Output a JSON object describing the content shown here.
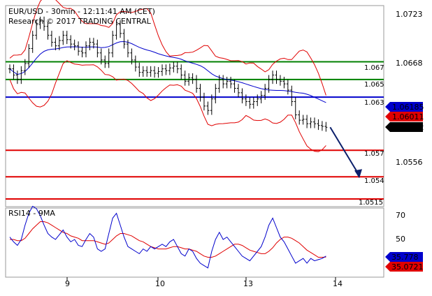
{
  "header": {
    "line1": "EUR/USD - 30min - 12:11:41 AM (CET)",
    "line2": "Research © 2017 TRADING CENTRAL"
  },
  "price_axis": [
    "1.0723",
    "1.0668",
    "1.0556"
  ],
  "date_axis": [
    "9",
    "10",
    "13",
    "14"
  ],
  "rsi_axis": [
    "70",
    "50"
  ],
  "rsi_title": "RSI14 - 9MA",
  "levels": [
    {
      "label": "1.067",
      "value": 1.067,
      "color": "#008000"
    },
    {
      "label": "1.065",
      "value": 1.065,
      "color": "#008000"
    },
    {
      "label": "1.063",
      "value": 1.063,
      "color": "#0000cc"
    },
    {
      "label": "1.057",
      "value": 1.057,
      "color": "#e00000"
    },
    {
      "label": "1.054",
      "value": 1.054,
      "color": "#e00000"
    },
    {
      "label": "1.0515",
      "value": 1.0515,
      "color": "#e00000"
    }
  ],
  "tags": {
    "ma": "1.06185",
    "ma2": "1.06011",
    "last": "1.05962",
    "rsi": "35.778",
    "rsi_ma": "35.0721"
  },
  "colors": {
    "price_bars": "#000000",
    "bollinger": "#e00000",
    "moving_average": "#0000cc",
    "support_resistance_pivot": "#0000cc",
    "resistance": "#008000",
    "support": "#e00000",
    "rsi": "#0000cc",
    "rsi_ma": "#e00000"
  },
  "chart_data": {
    "type": "line",
    "title": "EUR/USD - 30min - 12:11:41 AM (CET)",
    "x": [
      "9",
      "10",
      "13",
      "14"
    ],
    "ylim_price": [
      1.0485,
      1.0735
    ],
    "price_closes": [
      1.0662,
      1.0655,
      1.065,
      1.066,
      1.0668,
      1.0685,
      1.07,
      1.0712,
      1.0716,
      1.071,
      1.07,
      1.0692,
      1.0688,
      1.0694,
      1.07,
      1.0695,
      1.069,
      1.0688,
      1.0682,
      1.068,
      1.0688,
      1.0692,
      1.069,
      1.068,
      1.0672,
      1.0668,
      1.068,
      1.07,
      1.0712,
      1.0702,
      1.069,
      1.068,
      1.0672,
      1.0664,
      1.0658,
      1.066,
      1.0658,
      1.066,
      1.0657,
      1.0659,
      1.0662,
      1.066,
      1.0663,
      1.0665,
      1.0662,
      1.0655,
      1.0648,
      1.0652,
      1.065,
      1.064,
      1.063,
      1.062,
      1.0615,
      1.0628,
      1.064,
      1.065,
      1.0645,
      1.0648,
      1.0645,
      1.064,
      1.0635,
      1.0628,
      1.0625,
      1.0622,
      1.0625,
      1.0628,
      1.0632,
      1.064,
      1.065,
      1.0655,
      1.065,
      1.0648,
      1.0645,
      1.0638,
      1.0625,
      1.061,
      1.0604,
      1.0605,
      1.06,
      1.0602,
      1.06,
      1.0598,
      1.0597,
      1.0596
    ],
    "forecast_arrow": {
      "from": 1.0596,
      "to": 1.054
    },
    "rsi_series": [
      {
        "name": "RSI14",
        "values": [
          52,
          48,
          45,
          50,
          62,
          72,
          78,
          76,
          70,
          62,
          55,
          52,
          50,
          54,
          58,
          52,
          48,
          50,
          45,
          44,
          50,
          55,
          52,
          42,
          40,
          42,
          55,
          68,
          72,
          62,
          52,
          44,
          42,
          40,
          38,
          42,
          40,
          44,
          42,
          44,
          46,
          44,
          48,
          50,
          44,
          38,
          36,
          42,
          40,
          34,
          30,
          28,
          26,
          40,
          50,
          56,
          50,
          52,
          48,
          44,
          40,
          36,
          34,
          32,
          36,
          40,
          44,
          52,
          62,
          68,
          60,
          52,
          48,
          42,
          36,
          30,
          32,
          34,
          30,
          34,
          32,
          33,
          34,
          36
        ]
      },
      {
        "name": "9MA",
        "values": [
          50,
          50,
          49,
          49,
          51,
          55,
          59,
          62,
          65,
          65,
          64,
          62,
          60,
          58,
          56,
          55,
          53,
          52,
          51,
          49,
          49,
          49,
          49,
          48,
          47,
          46,
          47,
          50,
          53,
          55,
          55,
          54,
          53,
          51,
          49,
          48,
          46,
          44,
          43,
          42,
          42,
          42,
          43,
          44,
          44,
          43,
          42,
          42,
          41,
          40,
          38,
          36,
          35,
          35,
          36,
          38,
          40,
          42,
          44,
          46,
          46,
          45,
          43,
          41,
          40,
          39,
          38,
          38,
          40,
          43,
          47,
          50,
          52,
          52,
          51,
          49,
          47,
          44,
          41,
          39,
          37,
          35,
          35,
          35.1
        ]
      }
    ],
    "rsi_ylim": [
      15,
      85
    ]
  }
}
